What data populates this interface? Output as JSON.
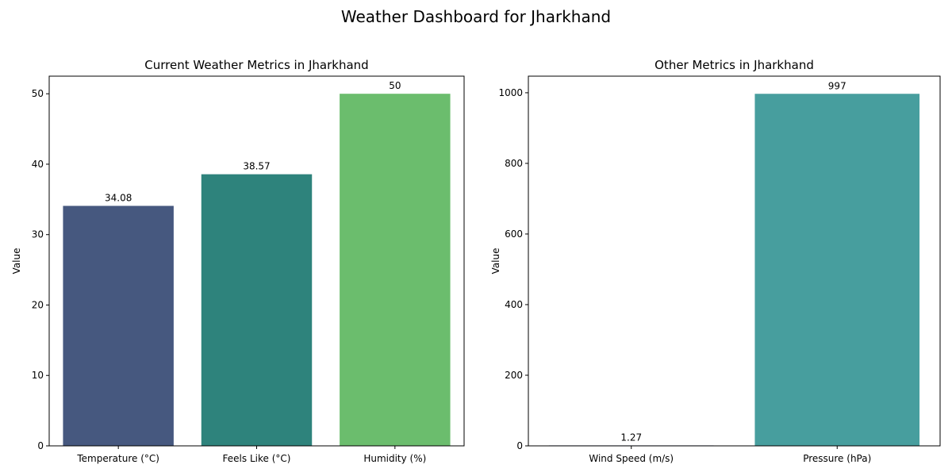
{
  "figure": {
    "title": "Weather Dashboard for Jharkhand"
  },
  "chart_data": [
    {
      "type": "bar",
      "title": "Current Weather Metrics in Jharkhand",
      "xlabel": "",
      "ylabel": "Value",
      "categories": [
        "Temperature (°C)",
        "Feels Like (°C)",
        "Humidity (%)"
      ],
      "values": [
        34.08,
        38.57,
        50
      ],
      "value_labels": [
        "34.08",
        "38.57",
        "50"
      ],
      "colors": [
        "#46587f",
        "#2e837c",
        "#6bbd6d"
      ],
      "ylim": [
        0,
        52.5
      ],
      "yticks": [
        0,
        10,
        20,
        30,
        40,
        50
      ],
      "grid": false,
      "legend": "none"
    },
    {
      "type": "bar",
      "title": "Other Metrics in Jharkhand",
      "xlabel": "",
      "ylabel": "Value",
      "categories": [
        "Wind Speed (m/s)",
        "Pressure (hPa)"
      ],
      "values": [
        1.27,
        997
      ],
      "value_labels": [
        "1.27",
        "997"
      ],
      "colors": [
        "#3b528b",
        "#479e9e"
      ],
      "ylim": [
        0,
        1047
      ],
      "yticks": [
        0,
        200,
        400,
        600,
        800,
        1000
      ],
      "grid": false,
      "legend": "none"
    }
  ]
}
